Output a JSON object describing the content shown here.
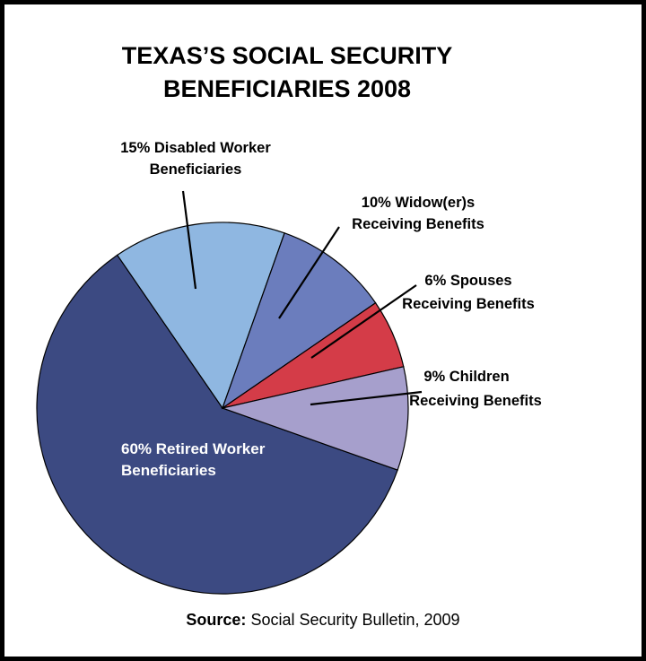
{
  "chart_data": {
    "type": "pie",
    "title": "TEXAS'S SOCIAL SECURITY BENEFICIARIES 2008",
    "title_lines": [
      "TEXAS’S SOCIAL SECURITY",
      "BENEFICIARIES 2008"
    ],
    "slices": [
      {
        "label_lines": [
          "60% Retired Worker",
          "Beneficiaries"
        ],
        "value": 60,
        "color": "#3c4a82"
      },
      {
        "label_lines": [
          "15% Disabled Worker",
          "Beneficiaries"
        ],
        "value": 15,
        "color": "#8fb7e1"
      },
      {
        "label_lines": [
          "10% Widow(er)s",
          "Receiving Benefits"
        ],
        "value": 10,
        "color": "#6b7dbd"
      },
      {
        "label_lines": [
          "6% Spouses",
          "Receiving Benefits"
        ],
        "value": 6,
        "color": "#d43c48"
      },
      {
        "label_lines": [
          "9% Children",
          "Receiving Benefits"
        ],
        "value": 9,
        "color": "#a69fcc"
      }
    ]
  },
  "source": {
    "label": "Source:",
    "text": " Social Security Bulletin, 2009"
  }
}
